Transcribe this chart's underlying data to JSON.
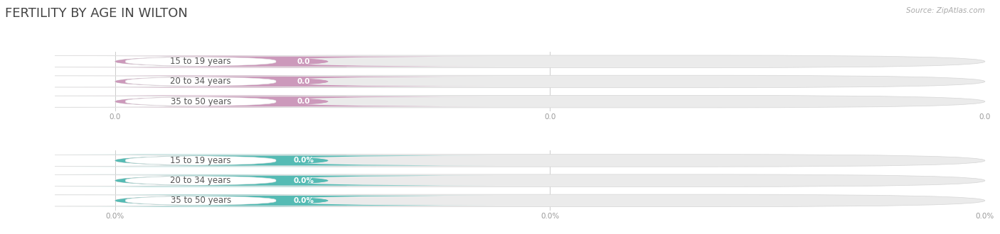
{
  "title": "FERTILITY BY AGE IN WILTON",
  "source": "Source: ZipAtlas.com",
  "categories": [
    "15 to 19 years",
    "20 to 34 years",
    "35 to 50 years"
  ],
  "values_count": [
    0.0,
    0.0,
    0.0
  ],
  "values_pct": [
    0.0,
    0.0,
    0.0
  ],
  "bar_color_count": "#cc99bb",
  "bar_color_pct": "#55bbb4",
  "bar_bg_color": "#ebebeb",
  "text_color_dark": "#555555",
  "title_color": "#444444",
  "bg_color": "#ffffff",
  "tick_label_color": "#999999",
  "tick_labels_count": [
    "0.0",
    "0.0",
    "0.0"
  ],
  "tick_labels_pct": [
    "0.0%",
    "0.0%",
    "0.0%"
  ],
  "font_size_title": 13,
  "font_size_labels": 8.5,
  "font_size_value": 7.5,
  "font_size_ticks": 7.5,
  "font_size_source": 7.5
}
